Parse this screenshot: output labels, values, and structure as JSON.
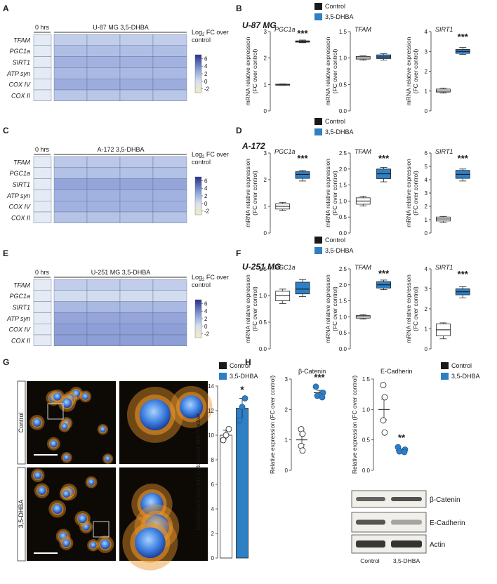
{
  "colors": {
    "control": "#1a1a1a",
    "treatment": "#2e7fc4",
    "box_fill": "#2e7fc4",
    "heat_low": "#f2ecc4",
    "heat_high": "#2b2f8e",
    "micro_bg": "#0d0a06",
    "micro_orange": "#e8952a",
    "micro_blue": "#3d7fe0"
  },
  "legend": {
    "control": "Control",
    "treatment": "3,5-DHBA"
  },
  "heatmaps": [
    {
      "panel": "A",
      "time_label": "0 hrs",
      "condition_label": "U-87 MG 3,5-DHBA",
      "genes": [
        "TFAM",
        "PGC1a",
        "SIRT1",
        "ATP syn",
        "COX IV",
        "COX II"
      ],
      "values": [
        [
          0,
          1.2,
          1.2,
          1.2,
          1.2
        ],
        [
          0,
          1.8,
          1.8,
          1.8,
          1.8
        ],
        [
          0,
          2.2,
          2.2,
          2.2,
          2.2
        ],
        [
          0,
          2.0,
          2.0,
          2.0,
          2.0
        ],
        [
          0,
          2.4,
          2.4,
          2.4,
          2.4
        ],
        [
          0,
          1.5,
          1.5,
          1.5,
          1.5
        ]
      ]
    },
    {
      "panel": "C",
      "time_label": "0 hrs",
      "condition_label": "A-172 3,5-DHBA",
      "genes": [
        "TFAM",
        "PGC1a",
        "SIRT1",
        "ATP syn",
        "COX IV",
        "COX II"
      ],
      "values": [
        [
          0,
          1.4,
          1.4,
          1.4,
          1.4
        ],
        [
          0,
          1.7,
          1.7,
          1.7,
          1.7
        ],
        [
          0,
          2.6,
          2.6,
          2.6,
          2.6
        ],
        [
          0,
          2.2,
          2.2,
          2.2,
          2.2
        ],
        [
          0,
          2.2,
          2.2,
          2.2,
          2.2
        ],
        [
          0,
          1.6,
          1.6,
          1.6,
          1.6
        ]
      ]
    },
    {
      "panel": "E",
      "time_label": "0 hrs",
      "condition_label": "U-251 MG 3,5-DHBA",
      "genes": [
        "TFAM",
        "PGC1a",
        "SIRT1",
        "ATP syn",
        "COX IV",
        "COX II"
      ],
      "values": [
        [
          0,
          1.2,
          1.2,
          1.2,
          1.2
        ],
        [
          0,
          0.6,
          0.6,
          0.6,
          0.6
        ],
        [
          0,
          2.0,
          2.0,
          2.0,
          2.0
        ],
        [
          0,
          2.6,
          2.6,
          2.6,
          2.6
        ],
        [
          0,
          2.8,
          2.8,
          2.8,
          2.8
        ],
        [
          0,
          2.8,
          2.8,
          2.8,
          2.8
        ]
      ]
    }
  ],
  "colorbar": {
    "title_pre": "Log",
    "title_sub": "2",
    "title_post": " FC over",
    "title_line2": "control",
    "ticks": [
      "6",
      "4",
      "2",
      "0",
      "-2"
    ],
    "range": [
      -3,
      7
    ]
  },
  "chart_data": [
    {
      "type": "box",
      "panel": "B",
      "cell_line": "U-87 MG",
      "ylabel": "mRNA relative expression (FC over control)",
      "plots": [
        {
          "title": "PGC1a",
          "ylim": [
            0,
            3
          ],
          "yticks": [
            "0",
            "1",
            "2",
            "3"
          ],
          "groups": [
            {
              "name": "Control",
              "min": 0.97,
              "q1": 0.98,
              "median": 1.0,
              "q3": 1.01,
              "max": 1.02
            },
            {
              "name": "3,5-DHBA",
              "min": 2.58,
              "q1": 2.6,
              "median": 2.63,
              "q3": 2.65,
              "max": 2.68
            }
          ],
          "sig": "***"
        },
        {
          "title": "TFAM",
          "ylim": [
            0,
            1.5
          ],
          "yticks": [
            "0.0",
            "0.5",
            "1.0",
            "1.5"
          ],
          "groups": [
            {
              "name": "Control",
              "min": 0.96,
              "q1": 0.98,
              "median": 1.0,
              "q3": 1.03,
              "max": 1.04
            },
            {
              "name": "3,5-DHBA",
              "min": 0.96,
              "q1": 0.99,
              "median": 1.02,
              "q3": 1.06,
              "max": 1.08
            }
          ],
          "sig": ""
        },
        {
          "title": "SIRT1",
          "ylim": [
            0,
            4
          ],
          "yticks": [
            "0",
            "1",
            "2",
            "3",
            "4"
          ],
          "groups": [
            {
              "name": "Control",
              "min": 0.9,
              "q1": 0.95,
              "median": 1.0,
              "q3": 1.1,
              "max": 1.15
            },
            {
              "name": "3,5-DHBA",
              "min": 2.85,
              "q1": 2.9,
              "median": 3.0,
              "q3": 3.1,
              "max": 3.2
            }
          ],
          "sig": "***"
        }
      ]
    },
    {
      "type": "box",
      "panel": "D",
      "cell_line": "A-172",
      "ylabel": "mRNA relative expression (FC over control)",
      "plots": [
        {
          "title": "PGC1a",
          "ylim": [
            0,
            3
          ],
          "yticks": [
            "0",
            "1",
            "2",
            "3"
          ],
          "groups": [
            {
              "name": "Control",
              "min": 0.85,
              "q1": 0.9,
              "median": 1.0,
              "q3": 1.1,
              "max": 1.15
            },
            {
              "name": "3,5-DHBA",
              "min": 1.95,
              "q1": 2.05,
              "median": 2.2,
              "q3": 2.3,
              "max": 2.35
            }
          ],
          "sig": "***"
        },
        {
          "title": "TFAM",
          "ylim": [
            0,
            2.5
          ],
          "yticks": [
            "0.0",
            "0.5",
            "1.0",
            "1.5",
            "2.0",
            "2.5"
          ],
          "groups": [
            {
              "name": "Control",
              "min": 0.85,
              "q1": 0.9,
              "median": 1.0,
              "q3": 1.1,
              "max": 1.15
            },
            {
              "name": "3,5-DHBA",
              "min": 1.6,
              "q1": 1.7,
              "median": 1.85,
              "q3": 2.0,
              "max": 2.05
            }
          ],
          "sig": "***"
        },
        {
          "title": "SIRT1",
          "ylim": [
            0,
            6
          ],
          "yticks": [
            "0",
            "1",
            "2",
            "3",
            "4",
            "5",
            "6"
          ],
          "groups": [
            {
              "name": "Control",
              "min": 0.8,
              "q1": 0.9,
              "median": 1.05,
              "q3": 1.2,
              "max": 1.25
            },
            {
              "name": "3,5-DHBA",
              "min": 3.9,
              "q1": 4.1,
              "median": 4.4,
              "q3": 4.7,
              "max": 4.8
            }
          ],
          "sig": "***"
        }
      ]
    },
    {
      "type": "box",
      "panel": "F",
      "cell_line": "U-251 MG",
      "ylabel": "mRNA relative expression (FC over control)",
      "plots": [
        {
          "title": "PGC1a",
          "ylim": [
            0,
            1.5
          ],
          "yticks": [
            "0.0",
            "0.5",
            "1.0",
            "1.5"
          ],
          "groups": [
            {
              "name": "Control",
              "min": 0.85,
              "q1": 0.9,
              "median": 1.0,
              "q3": 1.08,
              "max": 1.12
            },
            {
              "name": "3,5-DHBA",
              "min": 0.98,
              "q1": 1.03,
              "median": 1.12,
              "q3": 1.25,
              "max": 1.3
            }
          ],
          "sig": ""
        },
        {
          "title": "TFAM",
          "ylim": [
            0,
            2.5
          ],
          "yticks": [
            "0.0",
            "0.5",
            "1.0",
            "1.5",
            "2.0",
            "2.5"
          ],
          "groups": [
            {
              "name": "Control",
              "min": 0.93,
              "q1": 0.96,
              "median": 1.0,
              "q3": 1.04,
              "max": 1.07
            },
            {
              "name": "3,5-DHBA",
              "min": 1.85,
              "q1": 1.9,
              "median": 2.0,
              "q3": 2.1,
              "max": 2.15
            }
          ],
          "sig": "***"
        },
        {
          "title": "SIRT1",
          "ylim": [
            0,
            4
          ],
          "yticks": [
            "0",
            "1",
            "2",
            "3",
            "4"
          ],
          "groups": [
            {
              "name": "Control",
              "min": 0.5,
              "q1": 0.65,
              "median": 0.95,
              "q3": 1.25,
              "max": 1.3
            },
            {
              "name": "3,5-DHBA",
              "min": 2.55,
              "q1": 2.7,
              "median": 2.85,
              "q3": 3.0,
              "max": 3.1
            }
          ],
          "sig": "***"
        }
      ]
    },
    {
      "type": "bar",
      "panel": "G",
      "ylabel": "Normalized Intensity Cytoplasm MitoTracker",
      "ylim": [
        0,
        14
      ],
      "yticks": [
        "0",
        "2",
        "4",
        "6",
        "8",
        "10",
        "12",
        "14"
      ],
      "categories": [
        "Control",
        "3,5-DHBA"
      ],
      "values": [
        10.0,
        12.2
      ],
      "errors": [
        0.4,
        0.8
      ],
      "points": [
        [
          9.6,
          10.0,
          10.5
        ],
        [
          11.2,
          12.3,
          13.0
        ]
      ],
      "sig": "*"
    },
    {
      "type": "scatter",
      "panel": "H",
      "ylabel": "Relative expression (FC over control)",
      "plots": [
        {
          "title": "β-Catenin",
          "ylim": [
            0,
            3
          ],
          "yticks": [
            "0",
            "1",
            "2",
            "3"
          ],
          "control": [
            1.35,
            1.2,
            0.8,
            0.65
          ],
          "treatment": [
            2.75,
            2.55,
            2.45,
            2.4
          ],
          "control_mean": 1.0,
          "control_sem": 0.16,
          "treatment_mean": 2.55,
          "treatment_sem": 0.08,
          "sig": "***"
        },
        {
          "title": "E-Cadherin",
          "ylim": [
            0,
            1.5
          ],
          "yticks": [
            "0.0",
            "0.5",
            "1.0",
            "1.5"
          ],
          "control": [
            1.4,
            1.2,
            0.82,
            0.62
          ],
          "treatment": [
            0.38,
            0.34,
            0.31,
            0.3
          ],
          "control_mean": 1.0,
          "control_sem": 0.17,
          "treatment_mean": 0.33,
          "treatment_sem": 0.02,
          "sig": "**"
        }
      ]
    }
  ],
  "micro": {
    "row_labels": [
      "Control",
      "3,5-DHBA"
    ]
  },
  "blot": {
    "bands": [
      "β-Catenin",
      "E-Cadherin",
      "Actin"
    ],
    "lanes": [
      "Control",
      "3,5-DHBA"
    ]
  },
  "panel_letters": [
    "A",
    "B",
    "C",
    "D",
    "E",
    "F",
    "G",
    "H"
  ]
}
